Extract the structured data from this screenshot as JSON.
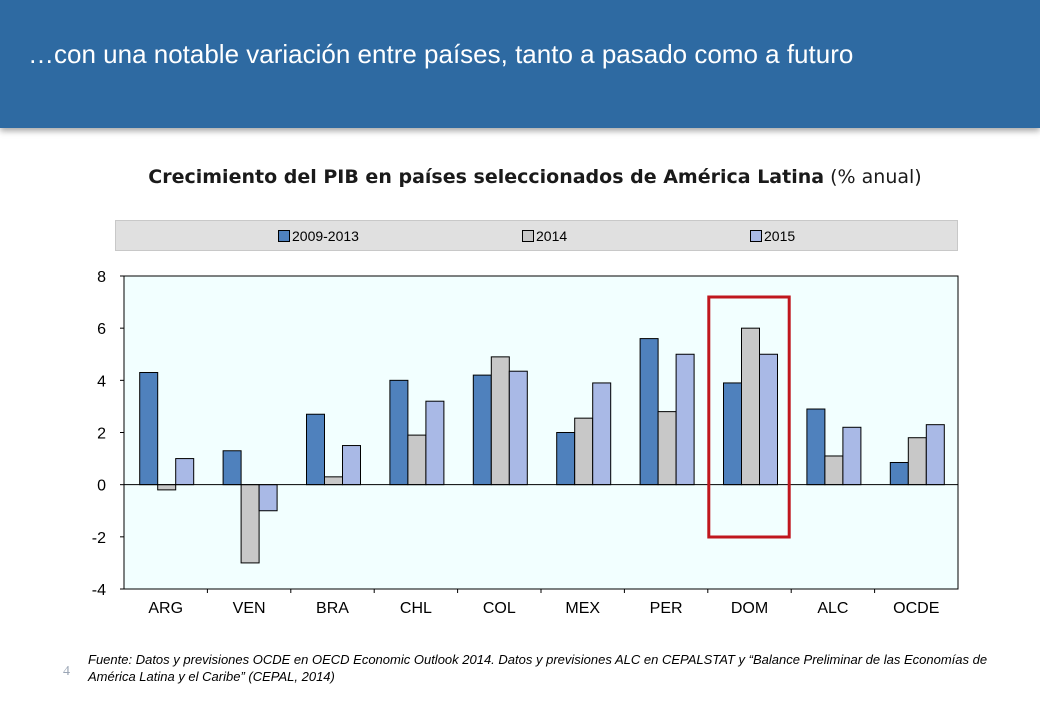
{
  "header": {
    "title": "…con una notable variación entre países, tanto a pasado como a futuro"
  },
  "chart_title": {
    "bold": "Crecimiento del PIB en países seleccionados de América Latina",
    "normal": "(% anual)"
  },
  "chart_data": {
    "type": "bar",
    "title": "Crecimiento del PIB en países seleccionados de América Latina (% anual)",
    "categories": [
      "ARG",
      "VEN",
      "BRA",
      "CHL",
      "COL",
      "MEX",
      "PER",
      "DOM",
      "ALC",
      "OCDE"
    ],
    "series": [
      {
        "name": "2009-2013",
        "color": "#4F81BD",
        "values": [
          4.3,
          1.3,
          2.7,
          4.0,
          4.2,
          2.0,
          5.6,
          3.9,
          2.9,
          0.85
        ]
      },
      {
        "name": "2014",
        "color": "#C8C8C8",
        "values": [
          -0.2,
          -3.0,
          0.3,
          1.9,
          4.9,
          2.55,
          2.8,
          6.0,
          1.1,
          1.8
        ]
      },
      {
        "name": "2015",
        "color": "#A9B9E6",
        "values": [
          1.0,
          -1.0,
          1.5,
          3.2,
          4.35,
          3.9,
          5.0,
          5.0,
          2.2,
          2.3
        ]
      }
    ],
    "ylim": [
      -4,
      8
    ],
    "yticks": [
      "-4",
      "-2",
      "0",
      "2",
      "4",
      "6",
      "8"
    ],
    "xlabel": "",
    "ylabel": "",
    "grid": false,
    "legend_position": "top",
    "plot_background": "#F2FFFF",
    "highlight": {
      "category": "DOM",
      "color": "#C0171E"
    }
  },
  "footnote": "Fuente: Datos y previsiones OCDE en OECD Economic Outlook 2014. Datos y previsiones ALC en CEPALSTAT y “Balance Preliminar de las Economías de América Latina y el Caribe” (CEPAL, 2014)",
  "page_number": "4"
}
